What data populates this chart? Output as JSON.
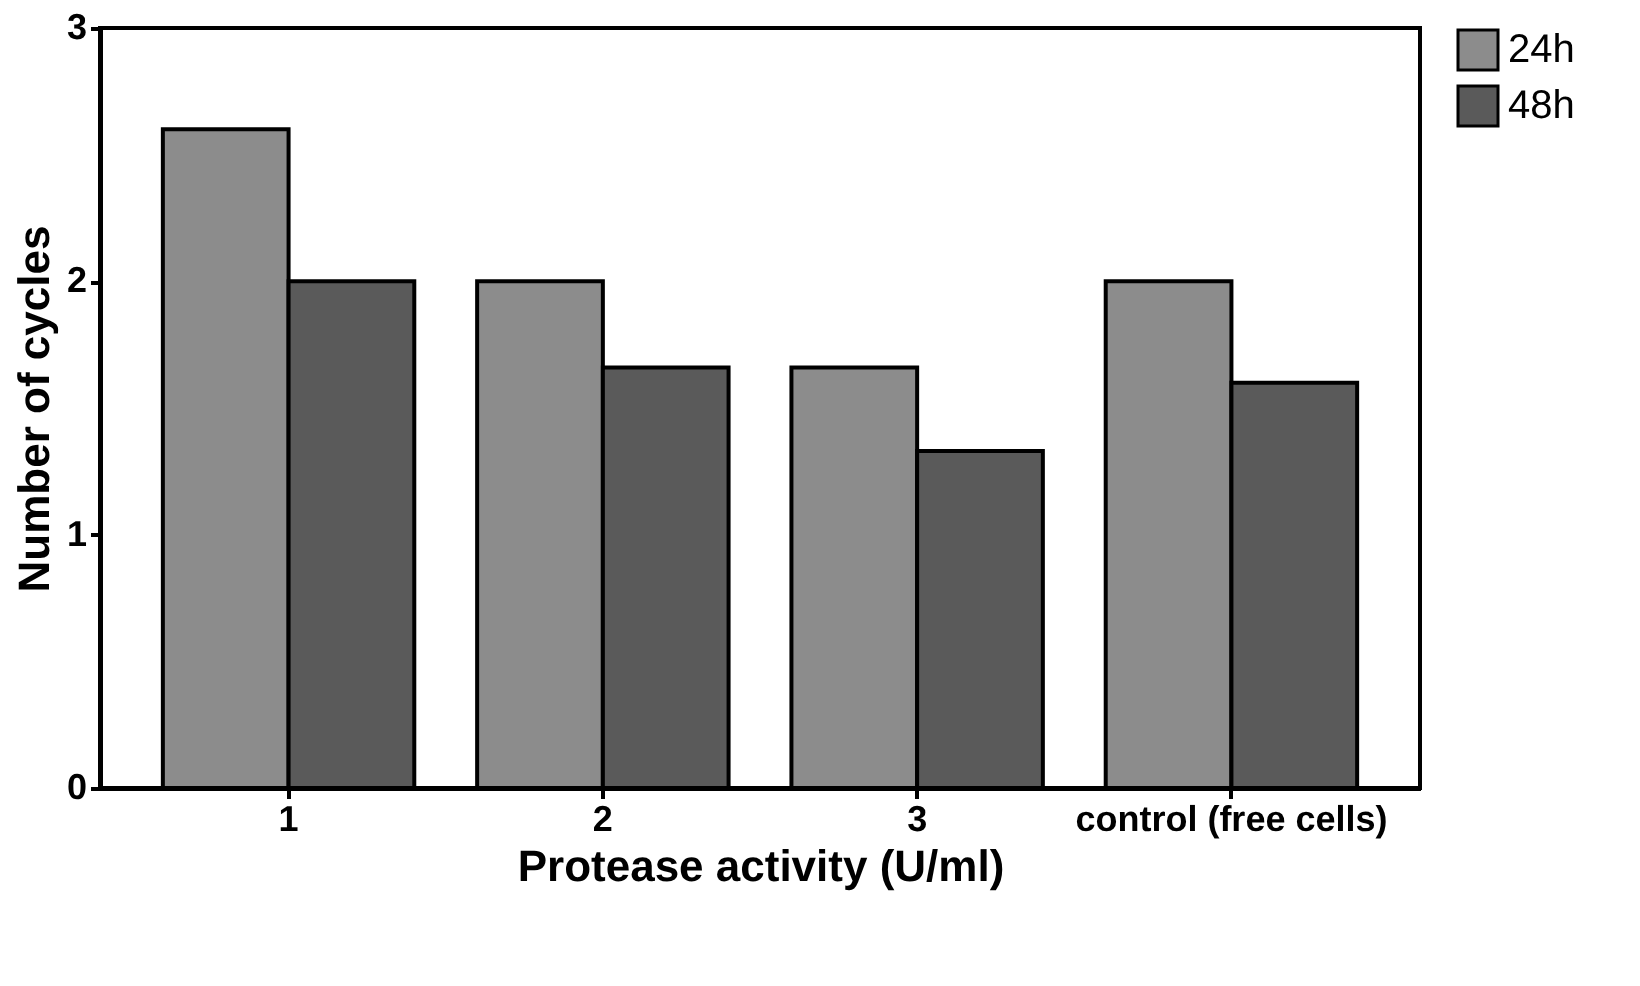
{
  "chart_data": {
    "type": "bar",
    "xlabel": "Protease activity (U/ml)",
    "ylabel": "Number of cycles",
    "categories": [
      "1",
      "2",
      "3",
      "control (free cells)"
    ],
    "series": [
      {
        "name": "24h",
        "color": "#8c8c8c",
        "values": [
          2.6,
          2.0,
          1.66,
          2.0
        ]
      },
      {
        "name": "48h",
        "color": "#5a5a5a",
        "values": [
          2.0,
          1.66,
          1.33,
          1.6
        ]
      }
    ],
    "ylim": [
      0,
      3
    ],
    "yticks": [
      0,
      1,
      2,
      3
    ],
    "grid": false,
    "legend": "top right"
  }
}
